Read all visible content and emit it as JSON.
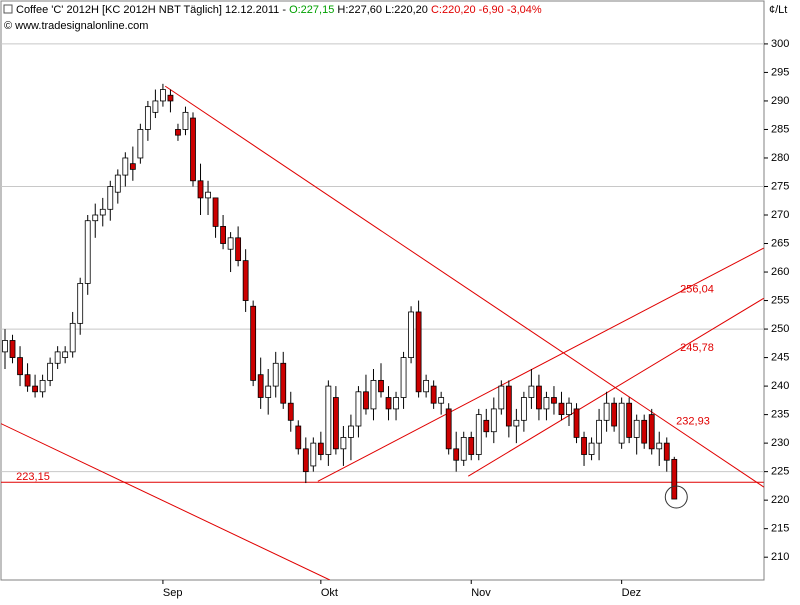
{
  "chart_data": {
    "type": "candlestick",
    "title": [
      "Coffee 'C' 2012H [KC 2012H NBT  Täglich] 12.12.2011 -",
      "O:227,15",
      "H:227,60 L:220,20",
      "C:220,20 -6,90 -3,04%"
    ],
    "subtitle": "© www.tradesignalonline.com",
    "y_axis_label": "¢/Lt",
    "categories": [
      null,
      null,
      null,
      null,
      null,
      null,
      null,
      null,
      null,
      null,
      null,
      null,
      null,
      null,
      null,
      null,
      null,
      null,
      null,
      null,
      null,
      "Sep",
      null,
      null,
      null,
      null,
      null,
      null,
      null,
      null,
      null,
      null,
      null,
      null,
      null,
      null,
      null,
      null,
      null,
      null,
      null,
      null,
      "Okt",
      null,
      null,
      null,
      null,
      null,
      null,
      null,
      null,
      null,
      null,
      null,
      null,
      null,
      null,
      null,
      null,
      null,
      null,
      null,
      "Nov",
      null,
      null,
      null,
      null,
      null,
      null,
      null,
      null,
      null,
      null,
      null,
      null,
      null,
      null,
      null,
      null,
      null,
      null,
      null,
      "Dez",
      null,
      null,
      null,
      null,
      null,
      null,
      null
    ],
    "open": [
      246,
      248,
      245,
      242,
      240,
      239,
      241,
      244,
      245,
      246,
      251,
      258,
      269,
      270,
      271,
      274,
      277,
      279,
      280,
      285,
      288,
      290,
      291,
      285,
      285,
      287,
      276,
      273,
      273,
      268,
      264,
      266,
      262,
      254,
      242,
      238,
      240,
      244,
      237,
      233,
      229,
      226,
      230,
      228,
      238,
      229,
      231,
      233,
      239,
      236,
      241,
      238,
      236,
      238,
      245,
      253,
      239,
      240,
      237,
      236,
      229,
      227,
      231,
      228,
      234,
      232,
      236,
      240,
      233,
      234,
      238,
      240,
      236,
      238,
      237,
      235,
      236,
      231,
      228,
      230,
      234,
      237,
      230,
      237,
      231,
      234,
      235,
      229,
      230,
      227.15
    ],
    "high": [
      250,
      249,
      247,
      244,
      242,
      242,
      245,
      247,
      247,
      253,
      259,
      270,
      272,
      273,
      276,
      278,
      281,
      282,
      286,
      290,
      292,
      293,
      292,
      286,
      289,
      288,
      279,
      276,
      273,
      270,
      267,
      268,
      264,
      255,
      245,
      243,
      246,
      246,
      239,
      234,
      231,
      231,
      232,
      241,
      240,
      233,
      235,
      240,
      242,
      243,
      244,
      240,
      239,
      246,
      254,
      255,
      242,
      241,
      239,
      237,
      232,
      232,
      232,
      236,
      236,
      238,
      241,
      241,
      236,
      239,
      243,
      242,
      239,
      240,
      239,
      238,
      237,
      232,
      231,
      236,
      239,
      238,
      238,
      238,
      235,
      235,
      236,
      232,
      231,
      227.6
    ],
    "low": [
      243,
      244,
      240,
      239,
      238,
      238,
      240,
      243,
      244,
      245,
      249,
      256,
      266,
      268,
      269,
      272,
      275,
      276,
      279,
      283,
      287,
      289,
      288,
      283,
      284,
      275,
      270,
      270,
      266,
      264,
      260,
      261,
      253,
      240,
      236,
      235,
      238,
      236,
      232,
      228,
      223,
      225,
      227,
      226,
      228,
      226,
      227,
      231,
      235,
      234,
      238,
      234,
      234,
      236,
      244,
      238,
      238,
      236,
      235,
      228,
      225,
      226,
      227,
      227,
      231,
      230,
      235,
      231,
      230,
      232,
      236,
      234,
      234,
      235,
      234,
      233,
      230,
      226,
      227,
      227,
      232,
      232,
      229,
      230,
      228,
      229,
      228,
      226,
      225,
      220.2
    ],
    "close": [
      248,
      245,
      242,
      240,
      239,
      241,
      244,
      246,
      246,
      251,
      258,
      269,
      270,
      271,
      275,
      277,
      280,
      278,
      285,
      289,
      290,
      292,
      290,
      284,
      288,
      276,
      273,
      274,
      268,
      265,
      266,
      262,
      255,
      241,
      238,
      240,
      244,
      237,
      234,
      229,
      225,
      230,
      228,
      240,
      229,
      231,
      233,
      239,
      236,
      241,
      239,
      236,
      238,
      245,
      253,
      239,
      241,
      237,
      238,
      229,
      227,
      231,
      228,
      235,
      232,
      236,
      240,
      233,
      234,
      238,
      240,
      236,
      238,
      237,
      235,
      237,
      231,
      228,
      230,
      234,
      237,
      233,
      237,
      231,
      234,
      230,
      229,
      230,
      227,
      220.2
    ],
    "up_color": "#ffffff",
    "down_color": "#cc0000",
    "line_color": "#e00000",
    "lines": [
      {
        "x": [
          21.3,
          100.9
        ],
        "y": [
          292.6,
          222.3
        ]
      },
      {
        "x": [
          -0.66,
          43.2
        ],
        "y": [
          233.5,
          206
        ]
      },
      {
        "x": [
          -0.66,
          100.9
        ],
        "y": [
          223.15,
          223.15
        ]
      },
      {
        "x": [
          41.6,
          100.9
        ],
        "y": [
          223.3,
          264.2
        ]
      },
      {
        "x": [
          61.6,
          100.9
        ],
        "y": [
          224.2,
          255.4
        ]
      }
    ],
    "line_labels": [
      {
        "value": 256.04,
        "label": "256,04"
      },
      {
        "value": 245.78,
        "label": "245,78"
      },
      {
        "value": 232.93,
        "label": "232,93"
      },
      {
        "value": 223.15,
        "label": "223,15"
      }
    ],
    "ylim": [
      206,
      307.7
    ],
    "yticks": [
      210,
      215,
      220,
      225,
      230,
      235,
      240,
      245,
      250,
      255,
      260,
      265,
      270,
      275,
      280,
      285,
      290,
      295,
      300
    ],
    "grid": true
  }
}
